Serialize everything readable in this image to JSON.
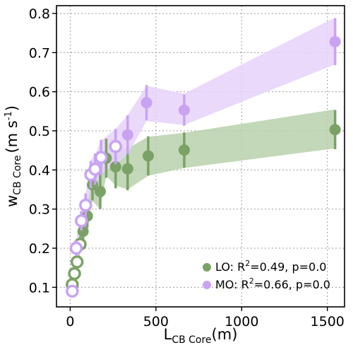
{
  "chart_data": {
    "type": "scatter",
    "xlabel": {
      "main": "L",
      "sub": "CB Core",
      "unit": "(m)"
    },
    "ylabel": {
      "main": "w",
      "sub": "CB Core",
      "unit_open": "(m s",
      "unit_sup": "-1",
      "unit_close": ")"
    },
    "xlim": [
      -80,
      1600
    ],
    "ylim": [
      0.05,
      0.82
    ],
    "xticks": [
      0,
      500,
      1000,
      1500
    ],
    "yticks": [
      0.1,
      0.2,
      0.3,
      0.4,
      0.5,
      0.6,
      0.7,
      0.8
    ],
    "xtick_labels": [
      "0",
      "500",
      "1000",
      "1500"
    ],
    "ytick_labels": [
      "0.1",
      "0.2",
      "0.3",
      "0.4",
      "0.5",
      "0.6",
      "0.7",
      "0.8"
    ],
    "grid": true,
    "legend_position": "bottom-right",
    "series": [
      {
        "key": "LO",
        "legend": {
          "prefix": "LO: R",
          "sup": "2",
          "suffix": "=0.49, p=0.0"
        },
        "color": "#7aa266",
        "band_color": "#b8d1ab",
        "open_max_x": 60,
        "points": [
          {
            "x": 12,
            "y": 0.107,
            "err": 0.012
          },
          {
            "x": 25,
            "y": 0.135,
            "err": 0.012
          },
          {
            "x": 40,
            "y": 0.165,
            "err": 0.015
          },
          {
            "x": 58,
            "y": 0.21,
            "err": 0.02
          },
          {
            "x": 75,
            "y": 0.243,
            "err": 0.025
          },
          {
            "x": 100,
            "y": 0.282,
            "err": 0.03
          },
          {
            "x": 130,
            "y": 0.362,
            "err": 0.04
          },
          {
            "x": 175,
            "y": 0.345,
            "err": 0.045
          },
          {
            "x": 210,
            "y": 0.43,
            "err": 0.05
          },
          {
            "x": 265,
            "y": 0.408,
            "err": 0.055
          },
          {
            "x": 335,
            "y": 0.403,
            "err": 0.055
          },
          {
            "x": 455,
            "y": 0.436,
            "err": 0.05
          },
          {
            "x": 665,
            "y": 0.451,
            "err": 0.045
          },
          {
            "x": 1545,
            "y": 0.503,
            "err": 0.05
          }
        ],
        "band": [
          {
            "x": 12,
            "lo": 0.095,
            "hi": 0.12
          },
          {
            "x": 40,
            "lo": 0.15,
            "hi": 0.18
          },
          {
            "x": 75,
            "lo": 0.22,
            "hi": 0.27
          },
          {
            "x": 100,
            "lo": 0.255,
            "hi": 0.31
          },
          {
            "x": 130,
            "lo": 0.32,
            "hi": 0.4
          },
          {
            "x": 175,
            "lo": 0.3,
            "hi": 0.39
          },
          {
            "x": 210,
            "lo": 0.385,
            "hi": 0.47
          },
          {
            "x": 265,
            "lo": 0.36,
            "hi": 0.455
          },
          {
            "x": 335,
            "lo": 0.35,
            "hi": 0.455
          },
          {
            "x": 455,
            "lo": 0.385,
            "hi": 0.485
          },
          {
            "x": 665,
            "lo": 0.405,
            "hi": 0.495
          },
          {
            "x": 1545,
            "lo": 0.455,
            "hi": 0.555
          }
        ]
      },
      {
        "key": "MO",
        "legend": {
          "prefix": "MO: R",
          "sup": "2",
          "suffix": "=0.66, p=0.0"
        },
        "color": "#c9a3f2",
        "band_color": "#e6d2f9",
        "open_max_x": 280,
        "points": [
          {
            "x": 12,
            "y": 0.09,
            "err": 0.012
          },
          {
            "x": 35,
            "y": 0.2,
            "err": 0.02
          },
          {
            "x": 65,
            "y": 0.27,
            "err": 0.025
          },
          {
            "x": 90,
            "y": 0.31,
            "err": 0.03
          },
          {
            "x": 120,
            "y": 0.388,
            "err": 0.035
          },
          {
            "x": 145,
            "y": 0.402,
            "err": 0.04
          },
          {
            "x": 180,
            "y": 0.432,
            "err": 0.045
          },
          {
            "x": 265,
            "y": 0.46,
            "err": 0.045
          },
          {
            "x": 335,
            "y": 0.49,
            "err": 0.05
          },
          {
            "x": 445,
            "y": 0.572,
            "err": 0.045
          },
          {
            "x": 665,
            "y": 0.553,
            "err": 0.04
          },
          {
            "x": 1545,
            "y": 0.728,
            "err": 0.06
          }
        ],
        "band": [
          {
            "x": 12,
            "lo": 0.08,
            "hi": 0.1
          },
          {
            "x": 35,
            "lo": 0.18,
            "hi": 0.22
          },
          {
            "x": 65,
            "lo": 0.245,
            "hi": 0.295
          },
          {
            "x": 90,
            "lo": 0.28,
            "hi": 0.34
          },
          {
            "x": 120,
            "lo": 0.35,
            "hi": 0.425
          },
          {
            "x": 145,
            "lo": 0.36,
            "hi": 0.44
          },
          {
            "x": 180,
            "lo": 0.39,
            "hi": 0.475
          },
          {
            "x": 265,
            "lo": 0.415,
            "hi": 0.505
          },
          {
            "x": 335,
            "lo": 0.44,
            "hi": 0.54
          },
          {
            "x": 445,
            "lo": 0.525,
            "hi": 0.615
          },
          {
            "x": 665,
            "lo": 0.515,
            "hi": 0.595
          },
          {
            "x": 1545,
            "lo": 0.67,
            "hi": 0.79
          }
        ]
      }
    ]
  }
}
